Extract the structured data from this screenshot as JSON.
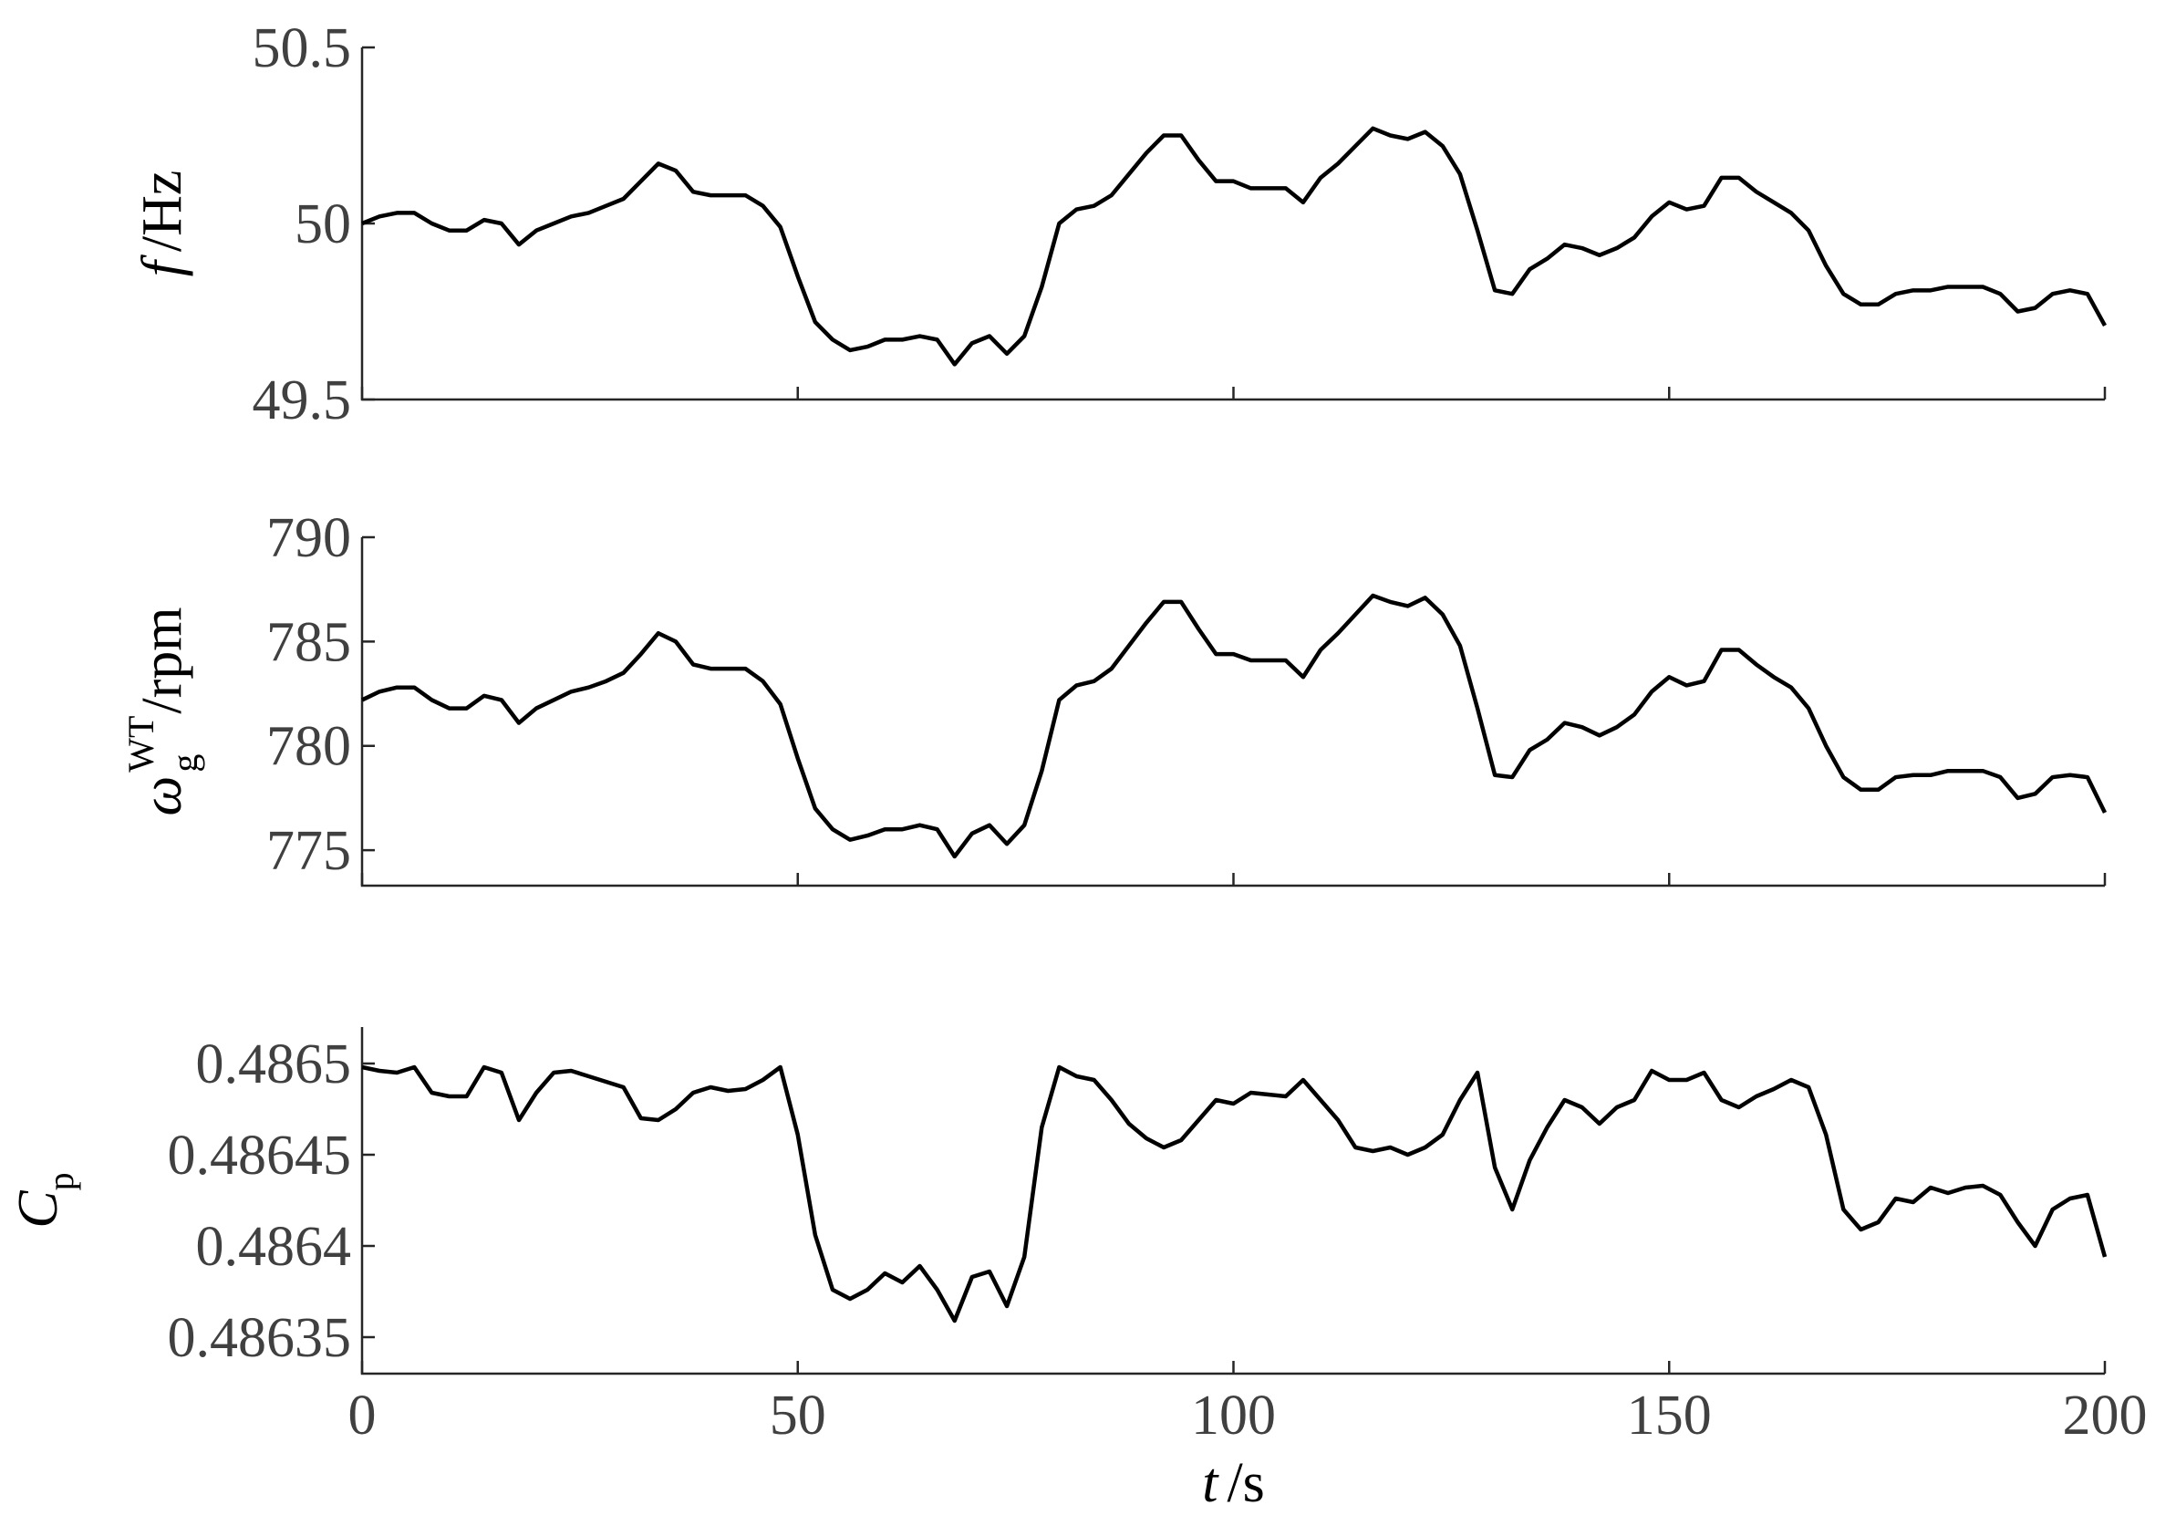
{
  "chart_data": [
    {
      "type": "line",
      "color": "#000000",
      "ylabel": {
        "symbol": "f",
        "unit": "/Hz"
      },
      "x": [
        0,
        2,
        4,
        6,
        8,
        10,
        12,
        14,
        16,
        18,
        20,
        22,
        24,
        26,
        28,
        30,
        32,
        34,
        36,
        38,
        40,
        42,
        44,
        46,
        48,
        50,
        52,
        54,
        56,
        58,
        60,
        62,
        64,
        66,
        68,
        70,
        72,
        74,
        76,
        78,
        80,
        82,
        84,
        86,
        88,
        90,
        92,
        94,
        96,
        98,
        100,
        102,
        104,
        106,
        108,
        110,
        112,
        114,
        116,
        118,
        120,
        122,
        124,
        126,
        128,
        130,
        132,
        134,
        136,
        138,
        140,
        142,
        144,
        146,
        148,
        150,
        152,
        154,
        156,
        158,
        160,
        162,
        164,
        166,
        168,
        170,
        172,
        174,
        176,
        178,
        180,
        182,
        184,
        186,
        188,
        190,
        192,
        194,
        196,
        198,
        200
      ],
      "values": [
        50.0,
        50.02,
        50.03,
        50.03,
        50.0,
        49.98,
        49.98,
        50.01,
        50.0,
        49.94,
        49.98,
        50.0,
        50.02,
        50.03,
        50.05,
        50.07,
        50.12,
        50.17,
        50.15,
        50.09,
        50.08,
        50.08,
        50.08,
        50.05,
        49.99,
        49.85,
        49.72,
        49.67,
        49.64,
        49.65,
        49.67,
        49.67,
        49.68,
        49.67,
        49.6,
        49.66,
        49.68,
        49.63,
        49.68,
        49.82,
        50.0,
        50.04,
        50.05,
        50.08,
        50.14,
        50.2,
        50.25,
        50.25,
        50.18,
        50.12,
        50.12,
        50.1,
        50.1,
        50.1,
        50.06,
        50.13,
        50.17,
        50.22,
        50.27,
        50.25,
        50.24,
        50.26,
        50.22,
        50.14,
        49.98,
        49.81,
        49.8,
        49.87,
        49.9,
        49.94,
        49.93,
        49.91,
        49.93,
        49.96,
        50.02,
        50.06,
        50.04,
        50.05,
        50.13,
        50.13,
        50.09,
        50.06,
        50.03,
        49.98,
        49.88,
        49.8,
        49.77,
        49.77,
        49.8,
        49.81,
        49.81,
        49.82,
        49.82,
        49.82,
        49.8,
        49.75,
        49.76,
        49.8,
        49.81,
        49.8,
        49.71
      ],
      "xlim": [
        0,
        200
      ],
      "xticks": [
        0,
        50,
        100,
        150,
        200
      ],
      "xticklabels": false,
      "ylim": [
        49.5,
        50.5
      ],
      "yticks": [
        49.5,
        50,
        50.5
      ]
    },
    {
      "type": "line",
      "color": "#000000",
      "ylabel": {
        "symbol": "ω",
        "subscript": "g",
        "superscript": "WT",
        "unit": "/rpm"
      },
      "x": [
        0,
        2,
        4,
        6,
        8,
        10,
        12,
        14,
        16,
        18,
        20,
        22,
        24,
        26,
        28,
        30,
        32,
        34,
        36,
        38,
        40,
        42,
        44,
        46,
        48,
        50,
        52,
        54,
        56,
        58,
        60,
        62,
        64,
        66,
        68,
        70,
        72,
        74,
        76,
        78,
        80,
        82,
        84,
        86,
        88,
        90,
        92,
        94,
        96,
        98,
        100,
        102,
        104,
        106,
        108,
        110,
        112,
        114,
        116,
        118,
        120,
        122,
        124,
        126,
        128,
        130,
        132,
        134,
        136,
        138,
        140,
        142,
        144,
        146,
        148,
        150,
        152,
        154,
        156,
        158,
        160,
        162,
        164,
        166,
        168,
        170,
        172,
        174,
        176,
        178,
        180,
        182,
        184,
        186,
        188,
        190,
        192,
        194,
        196,
        198,
        200
      ],
      "values": [
        782.2,
        782.6,
        782.8,
        782.8,
        782.2,
        781.8,
        781.8,
        782.4,
        782.2,
        781.1,
        781.8,
        782.2,
        782.6,
        782.8,
        783.1,
        783.5,
        784.4,
        785.4,
        785.0,
        783.9,
        783.7,
        783.7,
        783.7,
        783.1,
        782.0,
        779.4,
        777.0,
        776.0,
        775.5,
        775.7,
        776.0,
        776.0,
        776.2,
        776.0,
        774.7,
        775.8,
        776.2,
        775.3,
        776.2,
        778.8,
        782.2,
        782.9,
        783.1,
        783.7,
        784.8,
        785.9,
        786.9,
        786.9,
        785.6,
        784.4,
        784.4,
        784.1,
        784.1,
        784.1,
        783.3,
        784.6,
        785.4,
        786.3,
        787.2,
        786.9,
        786.7,
        787.1,
        786.3,
        784.8,
        781.8,
        778.6,
        778.5,
        779.8,
        780.3,
        781.1,
        780.9,
        780.5,
        780.9,
        781.5,
        782.6,
        783.3,
        782.9,
        783.1,
        784.6,
        784.6,
        783.9,
        783.3,
        782.8,
        781.8,
        780.0,
        778.5,
        777.9,
        777.9,
        778.5,
        778.6,
        778.6,
        778.8,
        778.8,
        778.8,
        778.5,
        777.5,
        777.7,
        778.5,
        778.6,
        778.5,
        776.8
      ],
      "xlim": [
        0,
        200
      ],
      "xticks": [
        0,
        50,
        100,
        150,
        200
      ],
      "xticklabels": false,
      "ylim": [
        773.3,
        790
      ],
      "yticks": [
        775,
        780,
        785,
        790
      ]
    },
    {
      "type": "line",
      "color": "#000000",
      "ylabel": {
        "symbol": "C",
        "subscript": "p"
      },
      "xlabel": {
        "symbol": "t",
        "unit": "/s"
      },
      "x": [
        0,
        2,
        4,
        6,
        8,
        10,
        12,
        14,
        16,
        18,
        20,
        22,
        24,
        26,
        28,
        30,
        32,
        34,
        36,
        38,
        40,
        42,
        44,
        46,
        48,
        50,
        52,
        54,
        56,
        58,
        60,
        62,
        64,
        66,
        68,
        70,
        72,
        74,
        76,
        78,
        80,
        82,
        84,
        86,
        88,
        90,
        92,
        94,
        96,
        98,
        100,
        102,
        104,
        106,
        108,
        110,
        112,
        114,
        116,
        118,
        120,
        122,
        124,
        126,
        128,
        130,
        132,
        134,
        136,
        138,
        140,
        142,
        144,
        146,
        148,
        150,
        152,
        154,
        156,
        158,
        160,
        162,
        164,
        166,
        168,
        170,
        172,
        174,
        176,
        178,
        180,
        182,
        184,
        186,
        188,
        190,
        192,
        194,
        196,
        198,
        200
      ],
      "values": [
        0.486498,
        0.486496,
        0.486495,
        0.486498,
        0.486484,
        0.486482,
        0.486482,
        0.486498,
        0.486495,
        0.486469,
        0.486484,
        0.486495,
        0.486496,
        0.486493,
        0.48649,
        0.486487,
        0.48647,
        0.486469,
        0.486475,
        0.486484,
        0.486487,
        0.486485,
        0.486486,
        0.486491,
        0.486498,
        0.486461,
        0.486406,
        0.486376,
        0.486371,
        0.486376,
        0.486385,
        0.48638,
        0.486389,
        0.486376,
        0.486359,
        0.486383,
        0.486386,
        0.486367,
        0.486394,
        0.486465,
        0.486498,
        0.486493,
        0.486491,
        0.48648,
        0.486467,
        0.486459,
        0.486454,
        0.486458,
        0.486469,
        0.48648,
        0.486478,
        0.486484,
        0.486483,
        0.486482,
        0.486491,
        0.48648,
        0.486469,
        0.486454,
        0.486452,
        0.486454,
        0.48645,
        0.486454,
        0.486461,
        0.48648,
        0.486495,
        0.486443,
        0.48642,
        0.486447,
        0.486465,
        0.48648,
        0.486476,
        0.486467,
        0.486476,
        0.48648,
        0.486496,
        0.486491,
        0.486491,
        0.486495,
        0.48648,
        0.486476,
        0.486482,
        0.486486,
        0.486491,
        0.486487,
        0.486461,
        0.48642,
        0.486409,
        0.486413,
        0.486426,
        0.486424,
        0.486432,
        0.486429,
        0.486432,
        0.486433,
        0.486428,
        0.486413,
        0.4864,
        0.48642,
        0.486426,
        0.486428,
        0.486394
      ],
      "xlim": [
        0,
        200
      ],
      "xticks": [
        0,
        50,
        100,
        150,
        200
      ],
      "xticklabels": true,
      "ylim": [
        0.48633,
        0.48652
      ],
      "yticks": [
        0.48635,
        0.4864,
        0.48645,
        0.4865
      ]
    }
  ]
}
